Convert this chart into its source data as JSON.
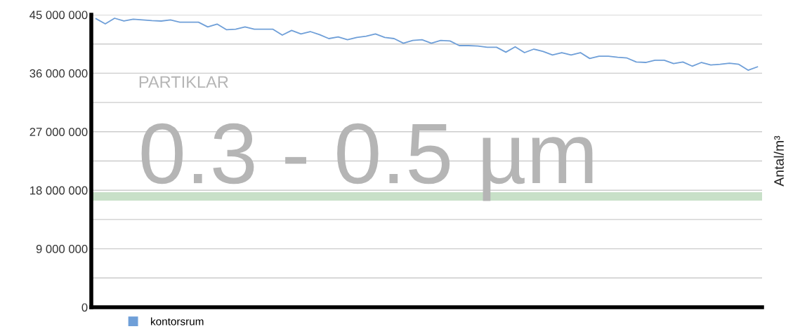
{
  "chart_data": {
    "type": "line",
    "annotations": [
      "PARTIKLAR",
      "0.3 - 0.5 µm"
    ],
    "ylabel": "Antal/m³",
    "categories": [
      null,
      null,
      null,
      null,
      null,
      null,
      null,
      null,
      null,
      null,
      null,
      null,
      null,
      null,
      null,
      null,
      null,
      null,
      null,
      null,
      null,
      null,
      null,
      null,
      null,
      null,
      null,
      null,
      null,
      null,
      null,
      null,
      null,
      null,
      null,
      null,
      null,
      null,
      null,
      null,
      null,
      null,
      null,
      null,
      null,
      null,
      null,
      null,
      null,
      null,
      null,
      null,
      null,
      null,
      null,
      null,
      null,
      null,
      null,
      null,
      null,
      null,
      null,
      null,
      null,
      null,
      null,
      null,
      null,
      null,
      null,
      null
    ],
    "series": [
      {
        "name": "kontorsrum",
        "color": "#6f9fd8",
        "values": [
          44390000,
          43600000,
          44460000,
          44030000,
          44320000,
          44210000,
          44100000,
          44030000,
          44210000,
          43850000,
          43850000,
          43850000,
          43130000,
          43560000,
          42700000,
          42770000,
          43130000,
          42770000,
          42770000,
          42770000,
          41870000,
          42590000,
          42050000,
          42410000,
          41940000,
          41330000,
          41580000,
          41150000,
          41510000,
          41690000,
          42050000,
          41510000,
          41330000,
          40610000,
          41040000,
          41150000,
          40610000,
          41040000,
          40970000,
          40250000,
          40250000,
          40180000,
          40000000,
          40000000,
          39240000,
          40070000,
          39170000,
          39710000,
          39350000,
          38810000,
          39170000,
          38810000,
          39170000,
          38270000,
          38630000,
          38630000,
          38450000,
          38340000,
          37730000,
          37660000,
          37990000,
          37990000,
          37480000,
          37730000,
          37090000,
          37660000,
          37270000,
          37370000,
          37550000,
          37370000,
          36470000,
          36980000
        ]
      }
    ],
    "ylim": [
      0,
      45000000
    ],
    "yticks": [
      0,
      {
        "value": 4500000,
        "label": null
      },
      {
        "value": 9000000,
        "label": "9 000 000"
      },
      {
        "value": 13500000,
        "label": null
      },
      {
        "value": 18000000,
        "label": "18 000 000"
      },
      {
        "value": 22500000,
        "label": null
      },
      {
        "value": 27000000,
        "label": "27 000 000"
      },
      {
        "value": 31500000,
        "label": null
      },
      {
        "value": 36000000,
        "label": "36 000 000"
      },
      {
        "value": 40500000,
        "label": null
      },
      {
        "value": 45000000,
        "label": "45 000 000"
      }
    ],
    "bands": [
      {
        "axis": "y",
        "from": 16400000,
        "to": 17700000,
        "color": "#c8e0c8"
      }
    ],
    "grid": "y",
    "legend": "bottom left",
    "tick_labels": "y"
  }
}
